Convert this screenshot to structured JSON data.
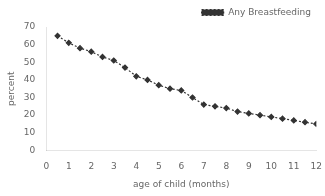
{
  "chart_data": {
    "type": "line",
    "xlabel": "age of child (months)",
    "ylabel": "percent",
    "x": [
      0.5,
      1,
      1.5,
      2,
      2.5,
      3,
      3.5,
      4,
      4.5,
      5,
      5.5,
      6,
      6.5,
      7,
      7.5,
      8,
      8.5,
      9,
      9.5,
      10,
      10.5,
      11,
      11.5,
      12
    ],
    "series": [
      {
        "name": "Any Breastfeeding",
        "color": "#333333",
        "marker": "diamond",
        "line_style": "dotted",
        "values": [
          65,
          61,
          58,
          56,
          53,
          51,
          47,
          42,
          40,
          37,
          35,
          34,
          30,
          26,
          25,
          24,
          22,
          21,
          20,
          19,
          18,
          17,
          16,
          15
        ]
      }
    ],
    "xlim": [
      0,
      12
    ],
    "ylim": [
      0,
      70
    ],
    "xticks": [
      0,
      1,
      2,
      3,
      4,
      5,
      6,
      7,
      8,
      9,
      10,
      11,
      12
    ],
    "yticks": [
      0,
      10,
      20,
      30,
      40,
      50,
      60,
      70
    ],
    "grid": false,
    "legend": "upper right"
  }
}
